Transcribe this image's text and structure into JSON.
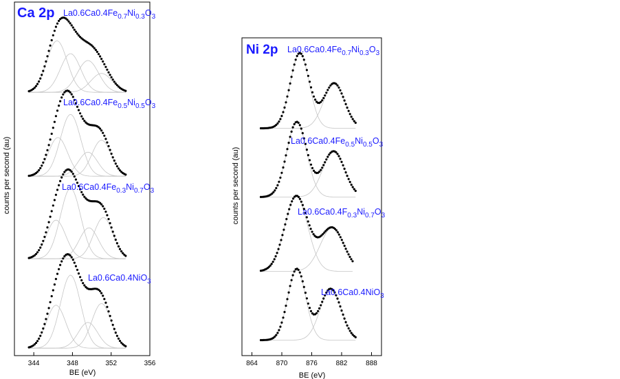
{
  "chart_data": [
    {
      "type": "scatter",
      "title": "Ca 2p",
      "xlabel": "BE (eV)",
      "ylabel": "counts per second (au)",
      "xticks": [
        "344",
        "348",
        "352",
        "356"
      ],
      "xlim": [
        342,
        356
      ],
      "spectra": [
        {
          "label": {
            "main": "La0.6Ca0.4Fe",
            "s1": "0.7",
            "mid": "Ni",
            "s2": "0.3",
            "end": "O",
            "s3": "3"
          },
          "x_start": 343.5,
          "x_end": 353.5,
          "baseline": 0.03,
          "peaks": [
            {
              "center": 346.4,
              "height": 0.6,
              "width": 1.05
            },
            {
              "center": 347.8,
              "height": 0.45,
              "width": 1.05
            },
            {
              "center": 349.6,
              "height": 0.37,
              "width": 1.1
            },
            {
              "center": 351.0,
              "height": 0.22,
              "width": 1.1
            }
          ]
        },
        {
          "label": {
            "main": "La0.6Ca0.4Fe",
            "s1": "0.5",
            "mid": "Ni",
            "s2": "0.5",
            "end": "O",
            "s3": "3"
          },
          "x_start": 343.5,
          "x_end": 353.5,
          "baseline": 0.03,
          "peaks": [
            {
              "center": 346.5,
              "height": 0.45,
              "width": 1.0
            },
            {
              "center": 347.8,
              "height": 0.72,
              "width": 1.05
            },
            {
              "center": 349.6,
              "height": 0.28,
              "width": 1.0
            },
            {
              "center": 351.0,
              "height": 0.42,
              "width": 1.0
            }
          ]
        },
        {
          "label": {
            "main": "La0.6Ca0.4Fe",
            "s1": "0.3",
            "mid": "Ni",
            "s2": "0.7",
            "end": "O",
            "s3": "3"
          },
          "x_start": 343.5,
          "x_end": 353.5,
          "baseline": 0.03,
          "peaks": [
            {
              "center": 346.3,
              "height": 0.45,
              "width": 1.0
            },
            {
              "center": 347.8,
              "height": 0.82,
              "width": 1.05
            },
            {
              "center": 349.7,
              "height": 0.36,
              "width": 1.0
            },
            {
              "center": 351.2,
              "height": 0.48,
              "width": 1.0
            }
          ]
        },
        {
          "label": {
            "main": "La0.6Ca0.4NiO",
            "s1": "",
            "mid": "",
            "s2": "",
            "end": "",
            "s3": "3"
          },
          "x_start": 343.5,
          "x_end": 353.5,
          "baseline": 0.03,
          "peaks": [
            {
              "center": 346.3,
              "height": 0.5,
              "width": 1.0
            },
            {
              "center": 347.8,
              "height": 0.85,
              "width": 1.05
            },
            {
              "center": 349.6,
              "height": 0.3,
              "width": 1.0
            },
            {
              "center": 351.0,
              "height": 0.52,
              "width": 1.0
            }
          ]
        }
      ]
    },
    {
      "type": "scatter",
      "title": "Ni 2p",
      "xlabel": "BE (eV)",
      "ylabel": "counts per second (au)",
      "xticks": [
        "864",
        "870",
        "876",
        "882",
        "888"
      ],
      "xlim": [
        862,
        890
      ],
      "spectra": [
        {
          "label": {
            "main": "La0.6Ca0.4Fe",
            "s1": "0.7",
            "mid": "Ni",
            "s2": "0.3",
            "end": "O",
            "s3": "3"
          },
          "x_start": 865.8,
          "x_end": 884.8,
          "baseline": 0.03,
          "peaks": [
            {
              "center": 873.6,
              "height": 0.95,
              "width": 1.9
            },
            {
              "center": 880.5,
              "height": 0.57,
              "width": 2.1
            }
          ]
        },
        {
          "label": {
            "main": "La0.6Ca0.4Fe",
            "s1": "0.5",
            "mid": "Ni",
            "s2": "0.5",
            "end": "O",
            "s3": "3"
          },
          "x_start": 865.8,
          "x_end": 884.8,
          "baseline": 0.03,
          "peaks": [
            {
              "center": 873.0,
              "height": 0.95,
              "width": 2.0
            },
            {
              "center": 880.4,
              "height": 0.58,
              "width": 2.2
            }
          ]
        },
        {
          "label": {
            "main": "La0.6Ca0.4F",
            "s1": "0.3",
            "mid": "Ni",
            "s2": "0.7",
            "end": "O",
            "s3": "3"
          },
          "x_start": 865.8,
          "x_end": 884.2,
          "baseline": 0.03,
          "peaks": [
            {
              "center": 872.9,
              "height": 0.95,
              "width": 2.3
            },
            {
              "center": 880.1,
              "height": 0.55,
              "width": 2.4
            }
          ]
        },
        {
          "label": {
            "main": "La0.6Ca0.4NiO",
            "s1": "",
            "mid": "",
            "s2": "",
            "end": "",
            "s3": "3"
          },
          "x_start": 865.8,
          "x_end": 884.8,
          "baseline": 0.03,
          "peaks": [
            {
              "center": 873.0,
              "height": 0.9,
              "width": 1.8
            },
            {
              "center": 879.8,
              "height": 0.65,
              "width": 2.1
            }
          ]
        }
      ]
    }
  ]
}
